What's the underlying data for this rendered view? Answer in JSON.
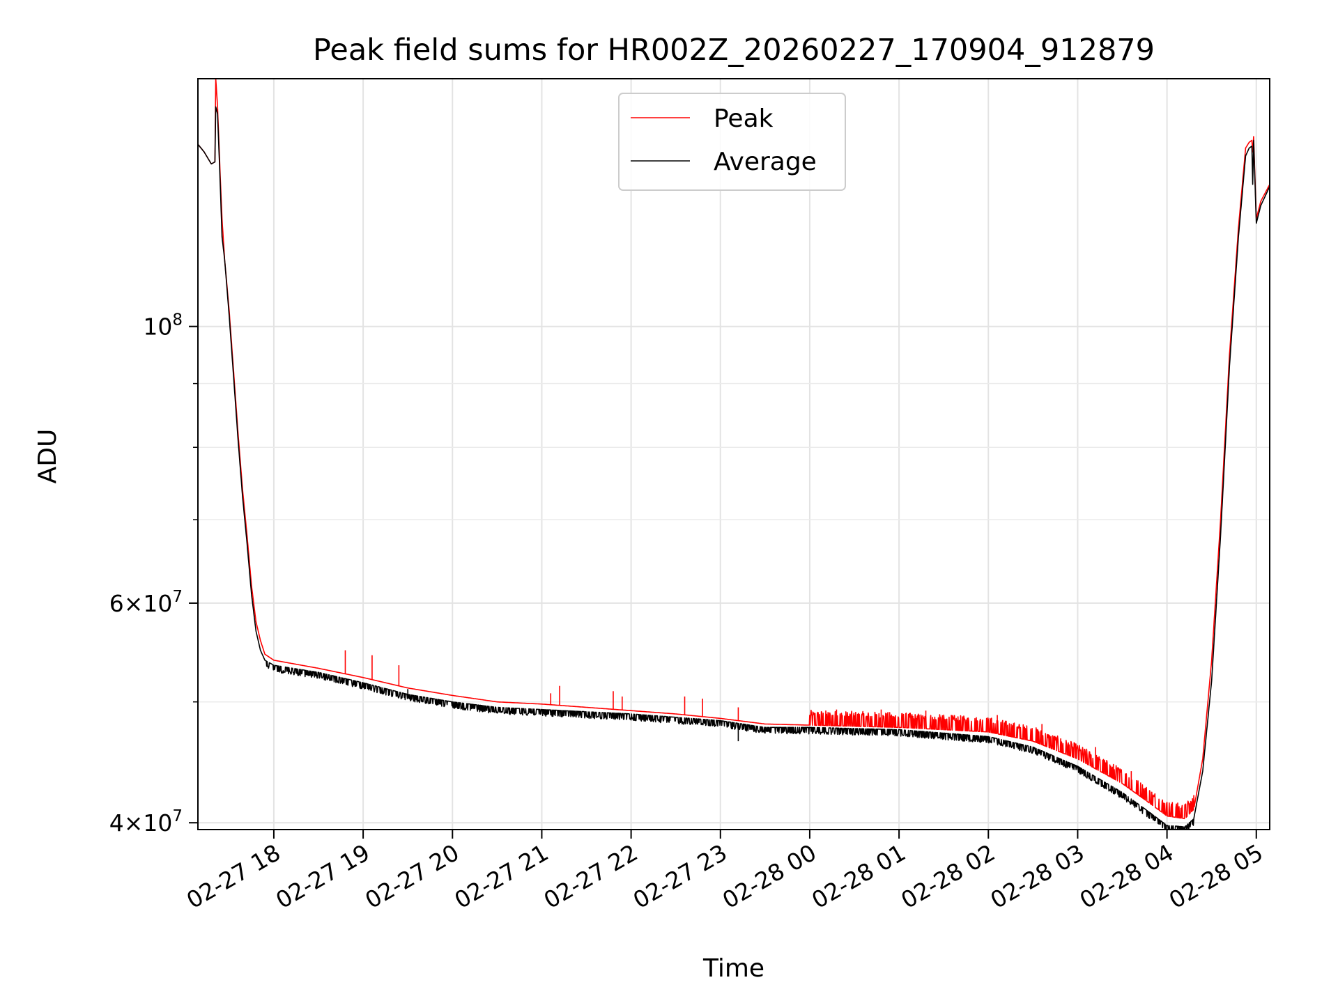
{
  "chart_data": {
    "type": "line",
    "title": "Peak field sums for HR002Z_20260227_170904_912879",
    "xlabel": "Time",
    "ylabel": "ADU",
    "yscale": "log",
    "ylim": [
      39500000,
      158000000
    ],
    "xlim_hours_since_2026_02_27_17_00": [
      0.15,
      12.15
    ],
    "grid": true,
    "legend_location": "upper center",
    "x_ticks": [
      {
        "hour": 1,
        "label": "02-27 18"
      },
      {
        "hour": 2,
        "label": "02-27 19"
      },
      {
        "hour": 3,
        "label": "02-27 20"
      },
      {
        "hour": 4,
        "label": "02-27 21"
      },
      {
        "hour": 5,
        "label": "02-27 22"
      },
      {
        "hour": 6,
        "label": "02-27 23"
      },
      {
        "hour": 7,
        "label": "02-28 00"
      },
      {
        "hour": 8,
        "label": "02-28 01"
      },
      {
        "hour": 9,
        "label": "02-28 02"
      },
      {
        "hour": 10,
        "label": "02-28 03"
      },
      {
        "hour": 11,
        "label": "02-28 04"
      },
      {
        "hour": 12,
        "label": "02-28 05"
      }
    ],
    "y_major_ticks": [
      {
        "value": 100000000,
        "base": "10",
        "exp": "8",
        "mant": ""
      },
      {
        "value": 60000000,
        "base": "10",
        "exp": "7",
        "mant": "6×"
      },
      {
        "value": 40000000,
        "base": "10",
        "exp": "7",
        "mant": "4×"
      }
    ],
    "y_minor_ticks": [
      50000000,
      70000000,
      80000000,
      90000000
    ],
    "series": [
      {
        "name": "Peak",
        "color": "#ff0000",
        "points": [
          [
            0.15,
            140000000
          ],
          [
            0.22,
            138000000
          ],
          [
            0.3,
            135000000
          ],
          [
            0.34,
            135500000
          ],
          [
            0.35,
            158000000
          ],
          [
            0.37,
            150000000
          ],
          [
            0.4,
            132000000
          ],
          [
            0.42,
            122000000
          ],
          [
            0.45,
            113000000
          ],
          [
            0.5,
            103000000
          ],
          [
            0.55,
            92000000
          ],
          [
            0.6,
            82000000
          ],
          [
            0.65,
            74000000
          ],
          [
            0.7,
            68000000
          ],
          [
            0.75,
            62000000
          ],
          [
            0.8,
            58000000
          ],
          [
            0.85,
            56000000
          ],
          [
            0.9,
            54600000
          ],
          [
            1.0,
            54000000
          ],
          [
            1.5,
            53200000
          ],
          [
            2.0,
            52300000
          ],
          [
            2.5,
            51300000
          ],
          [
            3.0,
            50600000
          ],
          [
            3.5,
            50000000
          ],
          [
            4.0,
            49800000
          ],
          [
            4.5,
            49500000
          ],
          [
            5.0,
            49200000
          ],
          [
            5.5,
            48900000
          ],
          [
            6.0,
            48500000
          ],
          [
            6.5,
            48000000
          ],
          [
            7.0,
            47900000
          ],
          [
            7.5,
            47800000
          ],
          [
            8.0,
            47700000
          ],
          [
            8.5,
            47500000
          ],
          [
            9.0,
            47300000
          ],
          [
            9.5,
            46500000
          ],
          [
            10.0,
            45000000
          ],
          [
            10.5,
            43000000
          ],
          [
            10.8,
            41500000
          ],
          [
            11.0,
            40500000
          ],
          [
            11.2,
            40300000
          ],
          [
            11.3,
            41000000
          ],
          [
            11.4,
            45000000
          ],
          [
            11.5,
            54000000
          ],
          [
            11.6,
            70000000
          ],
          [
            11.7,
            95000000
          ],
          [
            11.8,
            120000000
          ],
          [
            11.88,
            139000000
          ],
          [
            11.92,
            140500000
          ],
          [
            11.95,
            141000000
          ],
          [
            11.96,
            138000000
          ],
          [
            11.97,
            142000000
          ],
          [
            12.0,
            122000000
          ],
          [
            12.05,
            126000000
          ],
          [
            12.15,
            130000000
          ]
        ],
        "spikes": [
          [
            1.8,
            55000000
          ],
          [
            2.1,
            54500000
          ],
          [
            2.4,
            53500000
          ],
          [
            4.1,
            50800000
          ],
          [
            4.2,
            51500000
          ],
          [
            4.8,
            51000000
          ],
          [
            4.9,
            50500000
          ],
          [
            5.6,
            50500000
          ],
          [
            5.8,
            50300000
          ],
          [
            6.2,
            49500000
          ],
          [
            7.3,
            49300000
          ],
          [
            7.8,
            49300000
          ],
          [
            8.3,
            49200000
          ],
          [
            9.1,
            48800000
          ],
          [
            9.6,
            48000000
          ],
          [
            10.2,
            46000000
          ],
          [
            10.6,
            44000000
          ]
        ],
        "noise_amp": 0.014,
        "noise_start": 7.0,
        "noise_end": 11.3
      },
      {
        "name": "Average",
        "color": "#000000",
        "points": [
          [
            0.15,
            140000000
          ],
          [
            0.22,
            138000000
          ],
          [
            0.3,
            135000000
          ],
          [
            0.34,
            135500000
          ],
          [
            0.35,
            150000000
          ],
          [
            0.37,
            148000000
          ],
          [
            0.4,
            130000000
          ],
          [
            0.42,
            118000000
          ],
          [
            0.45,
            113000000
          ],
          [
            0.5,
            102000000
          ],
          [
            0.55,
            91000000
          ],
          [
            0.6,
            81000000
          ],
          [
            0.65,
            73000000
          ],
          [
            0.7,
            67000000
          ],
          [
            0.75,
            61000000
          ],
          [
            0.8,
            57000000
          ],
          [
            0.85,
            55000000
          ],
          [
            0.9,
            54000000
          ],
          [
            1.0,
            53500000
          ],
          [
            1.5,
            52800000
          ],
          [
            2.0,
            51800000
          ],
          [
            2.5,
            50700000
          ],
          [
            3.0,
            50000000
          ],
          [
            3.5,
            49500000
          ],
          [
            4.0,
            49300000
          ],
          [
            4.5,
            49100000
          ],
          [
            5.0,
            48900000
          ],
          [
            5.5,
            48600000
          ],
          [
            6.0,
            48300000
          ],
          [
            6.5,
            47700000
          ],
          [
            7.0,
            47700000
          ],
          [
            7.5,
            47600000
          ],
          [
            8.0,
            47500000
          ],
          [
            8.5,
            47200000
          ],
          [
            9.0,
            46900000
          ],
          [
            9.5,
            46000000
          ],
          [
            10.0,
            44400000
          ],
          [
            10.5,
            42300000
          ],
          [
            10.8,
            40800000
          ],
          [
            11.0,
            39800000
          ],
          [
            11.2,
            39700000
          ],
          [
            11.3,
            40300000
          ],
          [
            11.4,
            44000000
          ],
          [
            11.5,
            52000000
          ],
          [
            11.6,
            68000000
          ],
          [
            11.7,
            93000000
          ],
          [
            11.8,
            118000000
          ],
          [
            11.88,
            137000000
          ],
          [
            11.92,
            139000000
          ],
          [
            11.95,
            139500000
          ],
          [
            11.96,
            130000000
          ],
          [
            11.97,
            141000000
          ],
          [
            12.0,
            121000000
          ],
          [
            12.05,
            125000000
          ],
          [
            12.15,
            129500000
          ]
        ],
        "spikes": [
          [
            2.2,
            51000000
          ],
          [
            2.5,
            51200000
          ],
          [
            3.2,
            49200000
          ],
          [
            6.2,
            46500000
          ]
        ],
        "noise_amp": 0.008,
        "noise_start": 0.9,
        "noise_end": 11.3
      }
    ]
  }
}
